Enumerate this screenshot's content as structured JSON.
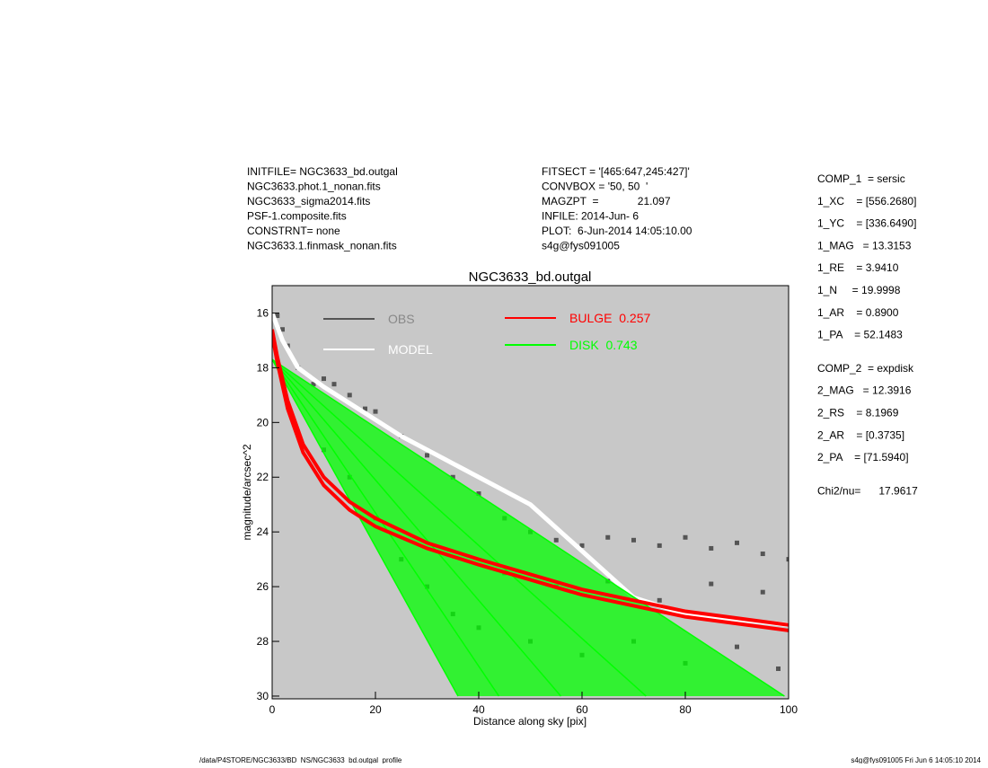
{
  "header": {
    "left": [
      "INITFILE= NGC3633_bd.outgal",
      "NGC3633.phot.1_nonan.fits",
      "NGC3633_sigma2014.fits",
      "PSF-1.composite.fits",
      "CONSTRNT= none",
      "NGC3633.1.finmask_nonan.fits"
    ],
    "center": [
      "FITSECT = '[465:647,245:427]'",
      "CONVBOX = '50, 50  '",
      "MAGZPT  =             21.097",
      "INFILE: 2014-Jun- 6",
      "PLOT:  6-Jun-2014 14:05:10.00",
      "s4g@fys091005"
    ]
  },
  "params": [
    [
      "COMP_1  = sersic",
      "1_XC    = [556.2680]",
      "1_YC    = [336.6490]",
      "1_MAG   = 13.3153",
      "1_RE    = 3.9410",
      "1_N     = 19.9998",
      "1_AR    = 0.8900",
      "1_PA    = 52.1483"
    ],
    [
      "COMP_2  = expdisk",
      "2_MAG   = 12.3916",
      "2_RS    = 8.1969",
      "2_AR    = [0.3735]",
      "2_PA    = [71.5940]"
    ],
    [
      "Chi2/nu=      17.9617"
    ]
  ],
  "footer": {
    "left": "/data/P4STORE/NGC3633/BD_NS/NGC3633_bd.outgal_profile",
    "right": "s4g@fys091005  Fri Jun  6 14:05:10 2014"
  },
  "chart_data": {
    "type": "profile",
    "title": "NGC3633_bd.outgal",
    "x_label": "Distance along sky [pix]",
    "y_label": "magnitude/arcsec^2",
    "xlim": [
      0,
      100
    ],
    "ylim": [
      30.1,
      15
    ],
    "xticks": [
      0,
      20,
      40,
      60,
      80,
      100
    ],
    "yticks": [
      16,
      18,
      20,
      22,
      24,
      26,
      28,
      30
    ],
    "background": "#c8c8c8",
    "series": [
      {
        "name": "OBS",
        "color": "#555555",
        "style": "points",
        "x": [
          1,
          2,
          3,
          5,
          8,
          10,
          12,
          15,
          18,
          20,
          25,
          30,
          35,
          40,
          45,
          50,
          55,
          60,
          65,
          70,
          75,
          80,
          85,
          90,
          95,
          100,
          10,
          15,
          20,
          25,
          30,
          35,
          40,
          50,
          60,
          70,
          80,
          90,
          98,
          45,
          55,
          65,
          75,
          85,
          95
        ],
        "values": [
          16.1,
          16.6,
          17.2,
          18,
          18.6,
          18.4,
          18.6,
          19,
          19.5,
          19.6,
          20.5,
          21.2,
          22,
          22.6,
          23.5,
          24,
          24.3,
          24.5,
          24.2,
          24.3,
          24.5,
          24.2,
          24.6,
          24.4,
          24.8,
          25,
          21,
          22,
          23.5,
          25,
          26,
          27,
          27.5,
          28,
          28.5,
          28,
          28.8,
          28.2,
          29,
          25.5,
          26,
          25.8,
          26.5,
          25.9,
          26.2
        ]
      },
      {
        "name": "MODEL",
        "color": "#ffffff",
        "style": "line",
        "x": [
          0,
          2,
          5,
          10,
          25,
          50,
          70,
          80,
          100
        ],
        "values": [
          16,
          17,
          18,
          18.7,
          20.5,
          23,
          26.4,
          27,
          27.4
        ]
      },
      {
        "name": "BULGE  0.257",
        "color": "#ff0000",
        "style": "profiles",
        "profiles": [
          {
            "x": [
              0,
              1,
              3,
              6,
              10,
              15,
              20,
              30,
              40,
              60,
              80,
              100
            ],
            "values": [
              16.6,
              17.6,
              19.2,
              20.8,
              22,
              22.9,
              23.5,
              24.4,
              25,
              26.1,
              26.9,
              27.4
            ]
          },
          {
            "x": [
              0,
              1,
              3,
              6,
              10,
              15,
              20,
              30,
              40,
              60,
              80,
              100
            ],
            "values": [
              16.8,
              17.8,
              19.5,
              21.1,
              22.3,
              23.2,
              23.8,
              24.6,
              25.2,
              26.3,
              27.1,
              27.6
            ]
          }
        ]
      },
      {
        "name": "DISK  0.743",
        "color": "#00ff00",
        "style": "profiles",
        "profiles": [
          {
            "x": [
              0,
              36
            ],
            "values": [
              17.7,
              30
            ]
          },
          {
            "x": [
              0,
              43.9
            ],
            "values": [
              17.7,
              30
            ]
          },
          {
            "x": [
              0,
              55.9
            ],
            "values": [
              17.7,
              30
            ]
          },
          {
            "x": [
              0,
              72.4
            ],
            "values": [
              17.7,
              30
            ]
          },
          {
            "x": [
              0,
              99.2
            ],
            "values": [
              17.7,
              30
            ]
          }
        ]
      }
    ]
  }
}
